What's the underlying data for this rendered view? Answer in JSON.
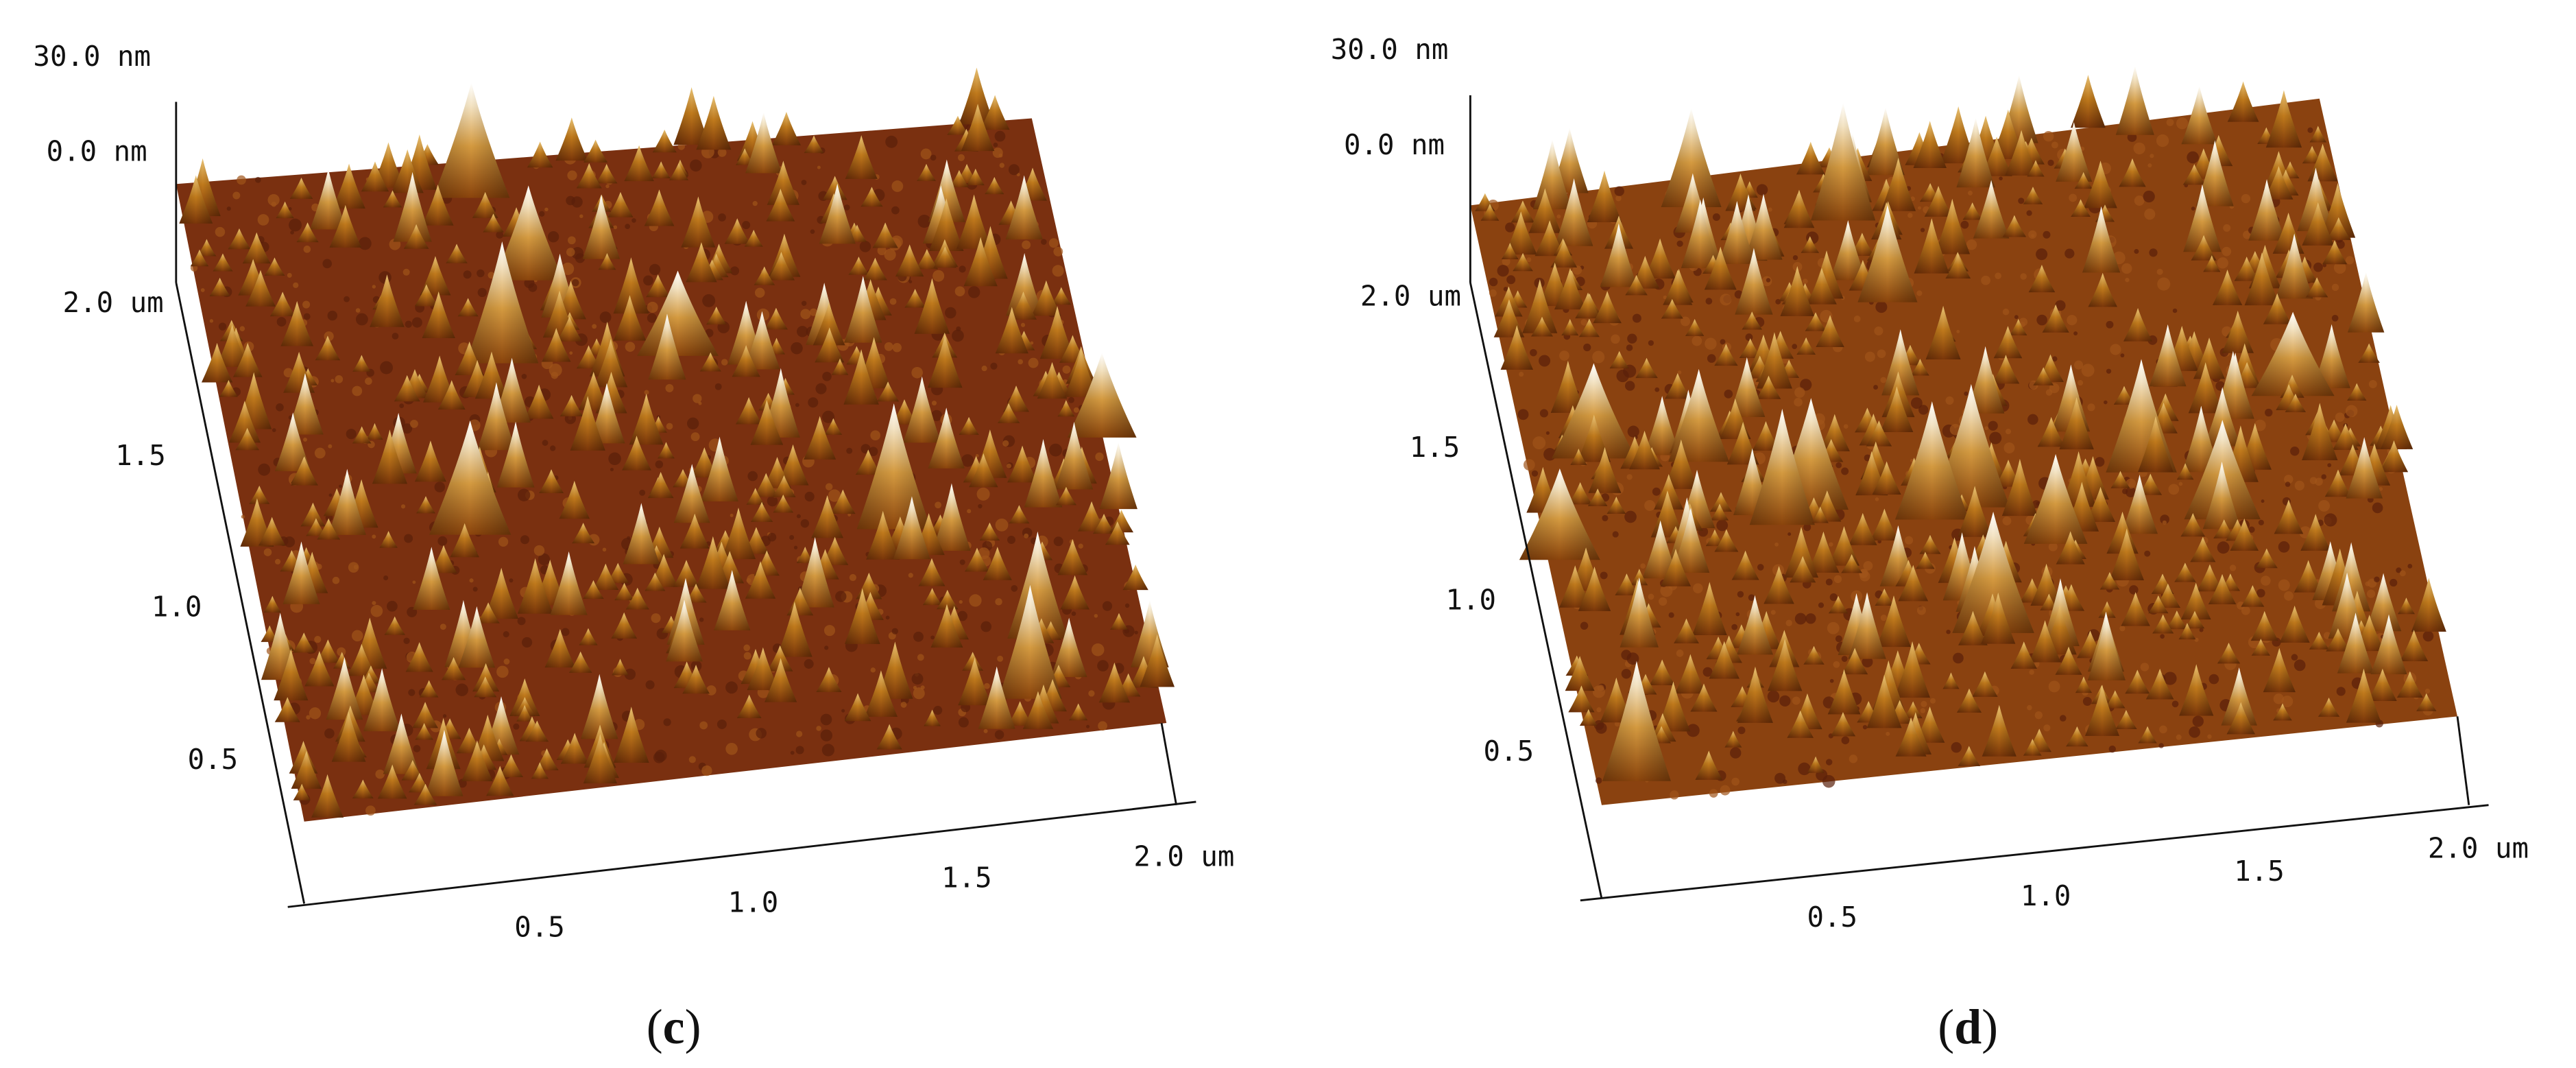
{
  "panels": [
    {
      "z_axis": [
        "30.0 nm",
        "0.0 nm"
      ],
      "y_axis": [
        "2.0 um",
        "1.5",
        "1.0",
        "0.5"
      ],
      "x_axis": [
        "0.5",
        "1.0",
        "1.5",
        "2.0 um"
      ],
      "caption": [
        "(",
        "c",
        ")"
      ]
    },
    {
      "z_axis": [
        "30.0 nm",
        "0.0 nm"
      ],
      "y_axis": [
        "2.0 um",
        "1.5",
        "1.0",
        "0.5"
      ],
      "x_axis": [
        "0.5",
        "1.0",
        "1.5",
        "2.0 um"
      ],
      "caption": [
        "(",
        "d",
        ")"
      ]
    }
  ]
}
